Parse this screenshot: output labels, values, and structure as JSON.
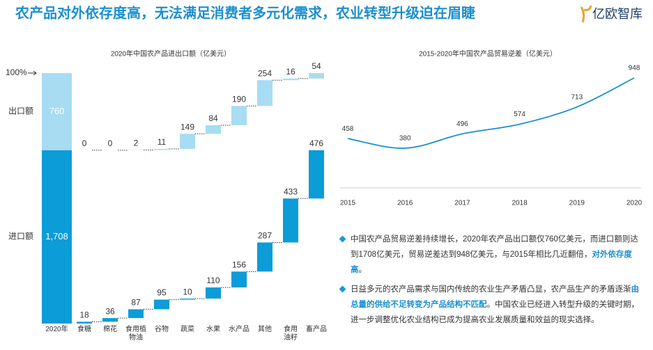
{
  "title": "农产品对外依存度高，无法满足消费者多元化需求，农业转型升级迫在眉睫",
  "logo": "亿欧智库",
  "chart_data": [
    {
      "type": "waterfall",
      "title": "2020年中国农产品进出口额（亿美元）",
      "top_label": "100%",
      "total_category": "2020年",
      "categories": [
        "食糖",
        "棉花",
        "食用植\n物油",
        "谷物",
        "蔬菜",
        "水果",
        "水产品",
        "其他",
        "食用\n油籽",
        "畜产品"
      ],
      "series": [
        {
          "name": "进口额",
          "color": "#0c9cd8",
          "total": 1708,
          "total_label": "1,708",
          "values": [
            18,
            36,
            87,
            95,
            10,
            110,
            156,
            287,
            433,
            476
          ]
        },
        {
          "name": "出口额",
          "color": "#a7dcf3",
          "total": 760,
          "values": [
            0,
            0,
            2,
            11,
            149,
            84,
            190,
            254,
            16,
            54
          ]
        }
      ]
    },
    {
      "type": "line",
      "title": "2015-2020年中国农产品贸易逆差（亿美元）",
      "x": [
        2015,
        2016,
        2017,
        2018,
        2019,
        2020
      ],
      "values": [
        458,
        380,
        496,
        574,
        713,
        948
      ],
      "color": "#1a8fc9"
    }
  ],
  "bullets": [
    [
      "中国农产品贸易逆差持续增长，2020年农产品出口额仅760亿美元，而进口额则达到1708亿美元，贸易逆差达到948亿美元，与2015年相比几近翻倍，",
      "对外依存度高",
      "。"
    ],
    [
      "日益多元的农产品需求与国内传统的农业生产矛盾凸显，农产品生产的矛盾逐渐",
      "由总量的供给不足转变为产品结构不匹配",
      "。中国农业已经进入转型升级的关键时期，进一步调整优化农业结构已成为提高农业发展质量和效益的现实选择。"
    ]
  ]
}
